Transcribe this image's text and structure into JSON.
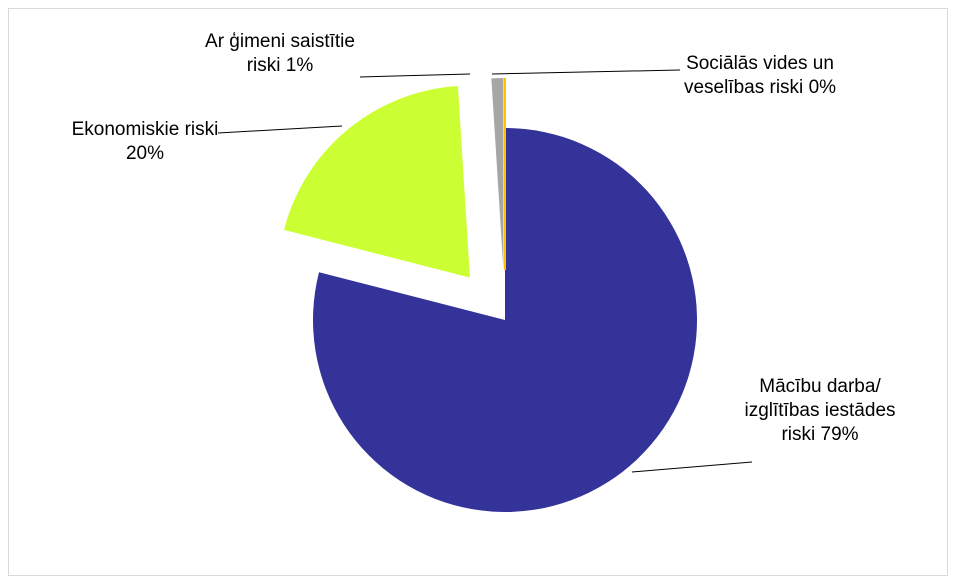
{
  "chart_data": {
    "type": "pie",
    "categories": [
      "Mācību darba/ izglītības iestādes riski",
      "Ekonomiskie riski",
      "Ar ģimeni saistītie riski",
      "Sociālās vides un veselības riski"
    ],
    "values": [
      79,
      20,
      1,
      0
    ],
    "value_labels": [
      "79%",
      "20%",
      "1%",
      "0%"
    ],
    "colors": [
      "#333399",
      "#ccff33",
      "#a6a6a6",
      "#ffc000"
    ]
  }
}
